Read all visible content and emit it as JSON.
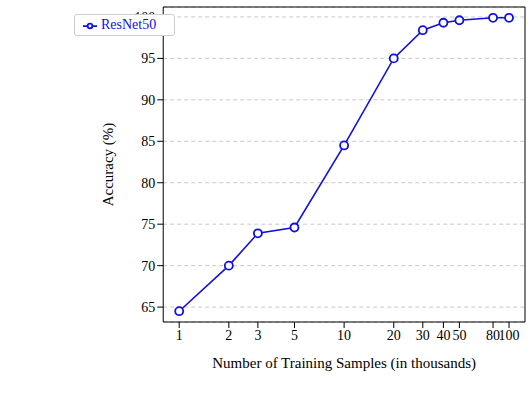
{
  "chart_data": {
    "type": "line",
    "x_label": "Number of Training Samples (in thousands)",
    "y_label": "Accuracy (%)",
    "x": [
      1,
      2,
      3,
      5,
      10,
      20,
      30,
      40,
      50,
      80,
      100
    ],
    "series": [
      {
        "name": "ResNet50",
        "color": "#1010e0",
        "marker": "circle",
        "values": [
          64.5,
          70.0,
          73.9,
          74.6,
          84.5,
          95.0,
          98.4,
          99.3,
          99.6,
          99.9,
          99.9
        ]
      }
    ],
    "log": "x",
    "xlim": [
      0.8,
      125
    ],
    "xticks": [
      1,
      2,
      3,
      5,
      10,
      20,
      30,
      40,
      50,
      80,
      100
    ],
    "ylim": [
      63.2,
      101.2
    ],
    "yticks": [
      65,
      70,
      75,
      80,
      85,
      90,
      95,
      100
    ],
    "grid": true,
    "legend": "upper left"
  }
}
